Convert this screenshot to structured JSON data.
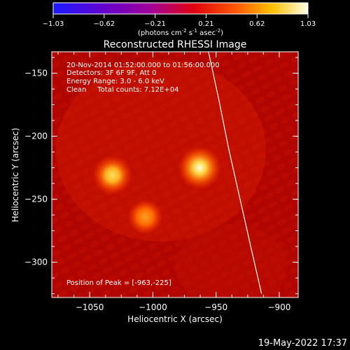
{
  "colorbar": {
    "ticks": [
      "-1.03",
      "-0.62",
      "-0.21",
      "0.21",
      "0.62",
      "1.03"
    ],
    "unit_prefix": "(photons cm",
    "unit_exp1": "-2",
    "unit_mid": " s",
    "unit_exp2": "-1",
    "unit_mid2": " asec",
    "unit_exp3": "-2",
    "unit_suffix": ")"
  },
  "plot": {
    "title": "Reconstructed RHESSI Image",
    "info": [
      "20-Nov-2014 01:52:00.000 to 01:56:00.000",
      "Detectors: 3F 6F 9F, Att 0",
      "Energy Range: 3.0 - 6.0 keV",
      "Clean     Total counts: 7.12E+04"
    ],
    "peak_label": "Position of Peak = [-963,-225]"
  },
  "footer": {
    "timestamp": "19-May-2022 17:37"
  },
  "chart_data": {
    "type": "heatmap",
    "title": "Reconstructed RHESSI Image",
    "xlabel": "Heliocentric X (arcsec)",
    "ylabel": "Heliocentric Y (arcsec)",
    "xlim": [
      -1080,
      -885
    ],
    "ylim": [
      -328,
      -133
    ],
    "xticks": [
      -1050,
      -1000,
      -950,
      -900
    ],
    "yticks": [
      -150,
      -200,
      -250,
      -300
    ],
    "xtick_labels": [
      "−1050",
      "−1000",
      "−950",
      "−900"
    ],
    "ytick_labels": [
      "−150",
      "−200",
      "−250",
      "−300"
    ],
    "colorbar_range": [
      -1.03,
      1.03
    ],
    "colormap": "RHESSI red-temperature (blue-purple-red-yellow-white)",
    "sources": [
      {
        "x": -963,
        "y": -225,
        "relative_intensity": 1.0
      },
      {
        "x": -1032,
        "y": -231,
        "relative_intensity": 0.82
      },
      {
        "x": -1006,
        "y": -264,
        "relative_intensity": 0.6
      }
    ],
    "limb_curve": [
      {
        "x": -956,
        "y": -133
      },
      {
        "x": -948,
        "y": -170
      },
      {
        "x": -940,
        "y": -210
      },
      {
        "x": -931,
        "y": -250
      },
      {
        "x": -922,
        "y": -290
      },
      {
        "x": -914,
        "y": -325
      }
    ]
  }
}
